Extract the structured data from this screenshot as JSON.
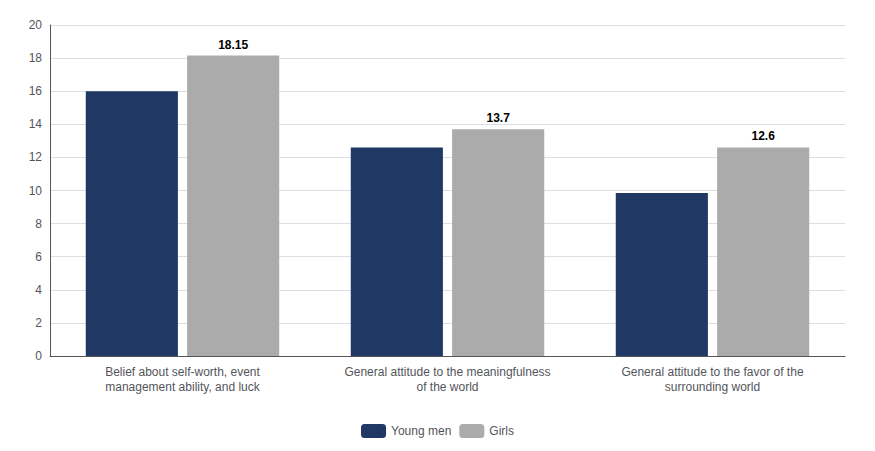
{
  "chart_data": {
    "type": "bar",
    "categories": [
      "Belief about self-worth, event\nmanagement ability, and luck",
      "General attitude to the meaningfulness\nof the world",
      "General attitude to the favor of the\nsurrounding world"
    ],
    "series": [
      {
        "name": "Young men",
        "color": "#1F3864",
        "values": [
          16.0,
          12.6,
          9.85
        ]
      },
      {
        "name": "Girls",
        "color": "#ABABAB",
        "values": [
          18.15,
          13.7,
          12.6
        ],
        "data_labels": true
      }
    ],
    "ylim": [
      0,
      20
    ],
    "yticks": [
      0,
      2,
      4,
      6,
      8,
      10,
      12,
      14,
      16,
      18,
      20
    ],
    "grid": true,
    "legend": "bottom"
  }
}
